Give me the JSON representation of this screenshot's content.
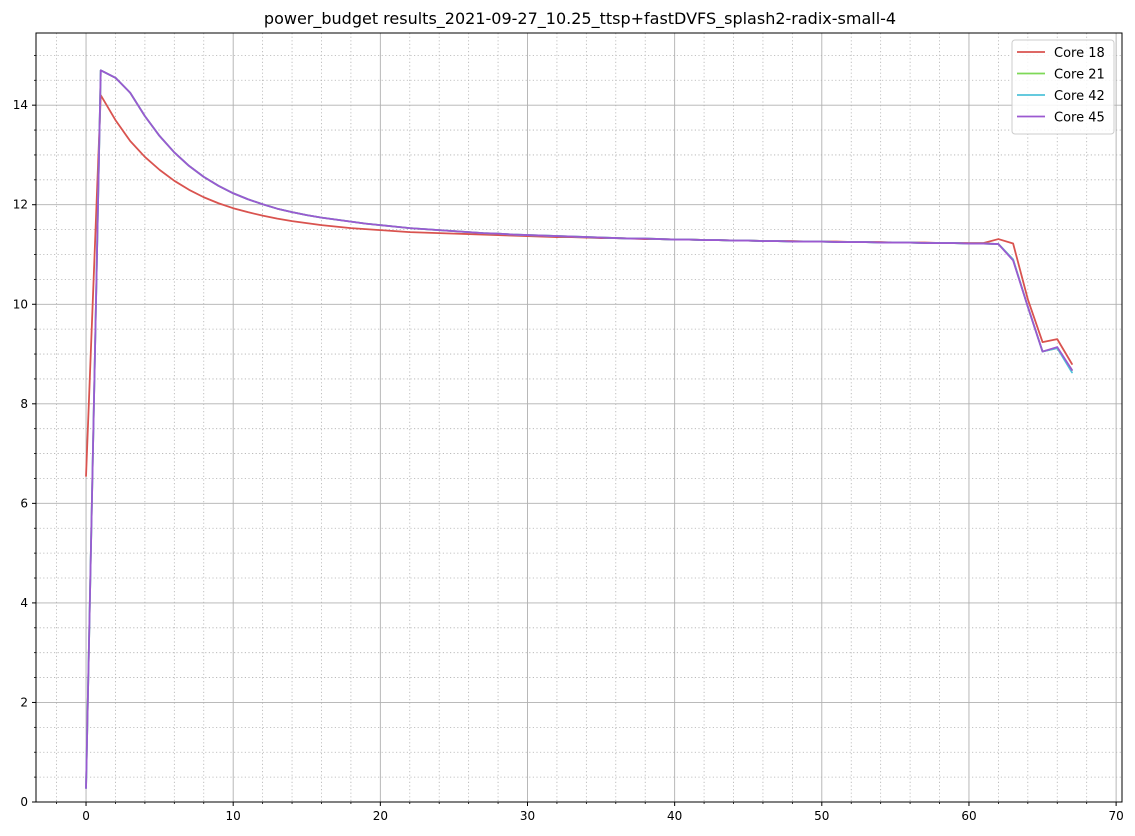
{
  "chart_data": {
    "type": "line",
    "title": "power_budget results_2021-09-27_10.25_ttsp+fastDVFS_splash2-radix-small-4",
    "xlabel": "",
    "ylabel": "",
    "xlim": [
      -3.4,
      70.4
    ],
    "ylim": [
      0,
      15.45
    ],
    "x_ticks": [
      0,
      10,
      20,
      30,
      40,
      50,
      60,
      70
    ],
    "y_ticks": [
      0,
      2,
      4,
      6,
      8,
      10,
      12,
      14
    ],
    "x_minor_step": 2,
    "y_minor_step": 0.5,
    "grid": true,
    "legend_position": "top-right",
    "x": [
      0,
      1,
      2,
      3,
      4,
      5,
      6,
      7,
      8,
      9,
      10,
      11,
      12,
      13,
      14,
      15,
      16,
      17,
      18,
      19,
      20,
      21,
      22,
      23,
      24,
      25,
      26,
      27,
      28,
      29,
      30,
      31,
      32,
      33,
      34,
      35,
      36,
      37,
      38,
      39,
      40,
      41,
      42,
      43,
      44,
      45,
      46,
      47,
      48,
      49,
      50,
      51,
      52,
      53,
      54,
      55,
      56,
      57,
      58,
      59,
      60,
      61,
      62,
      63,
      64,
      65,
      66,
      67
    ],
    "series": [
      {
        "name": "Core 18",
        "color": "#d9534f",
        "values": [
          6.55,
          14.2,
          13.7,
          13.28,
          12.96,
          12.7,
          12.48,
          12.3,
          12.15,
          12.03,
          11.93,
          11.85,
          11.78,
          11.72,
          11.67,
          11.63,
          11.59,
          11.56,
          11.53,
          11.51,
          11.49,
          11.47,
          11.45,
          11.44,
          11.43,
          11.42,
          11.41,
          11.4,
          11.39,
          11.38,
          11.37,
          11.36,
          11.35,
          11.35,
          11.34,
          11.33,
          11.33,
          11.32,
          11.31,
          11.31,
          11.3,
          11.3,
          11.29,
          11.29,
          11.28,
          11.28,
          11.27,
          11.27,
          11.27,
          11.26,
          11.26,
          11.26,
          11.25,
          11.25,
          11.25,
          11.24,
          11.24,
          11.24,
          11.23,
          11.23,
          11.23,
          11.23,
          11.31,
          11.22,
          10.1,
          9.24,
          9.3,
          8.8
        ]
      },
      {
        "name": "Core 21",
        "color": "#7ed957",
        "values": [
          0.28,
          14.7,
          14.55,
          14.25,
          13.78,
          13.38,
          13.05,
          12.78,
          12.56,
          12.38,
          12.23,
          12.11,
          12.01,
          11.92,
          11.85,
          11.79,
          11.74,
          11.7,
          11.66,
          11.62,
          11.59,
          11.56,
          11.53,
          11.51,
          11.49,
          11.47,
          11.45,
          11.43,
          11.42,
          11.4,
          11.39,
          11.38,
          11.37,
          11.36,
          11.35,
          11.34,
          11.33,
          11.32,
          11.32,
          11.31,
          11.3,
          11.3,
          11.29,
          11.29,
          11.28,
          11.28,
          11.27,
          11.27,
          11.26,
          11.26,
          11.26,
          11.25,
          11.25,
          11.25,
          11.24,
          11.24,
          11.24,
          11.23,
          11.23,
          11.23,
          11.22,
          11.22,
          11.21,
          10.9,
          9.95,
          9.05,
          9.12,
          8.68
        ]
      },
      {
        "name": "Core 42",
        "color": "#4fc3d9",
        "values": [
          0.28,
          14.7,
          14.55,
          14.25,
          13.78,
          13.38,
          13.05,
          12.78,
          12.56,
          12.38,
          12.23,
          12.11,
          12.01,
          11.92,
          11.85,
          11.79,
          11.74,
          11.7,
          11.66,
          11.62,
          11.59,
          11.56,
          11.53,
          11.51,
          11.49,
          11.47,
          11.45,
          11.43,
          11.42,
          11.4,
          11.39,
          11.38,
          11.37,
          11.36,
          11.35,
          11.34,
          11.33,
          11.32,
          11.32,
          11.31,
          11.3,
          11.3,
          11.29,
          11.29,
          11.28,
          11.28,
          11.27,
          11.27,
          11.26,
          11.26,
          11.26,
          11.25,
          11.25,
          11.25,
          11.24,
          11.24,
          11.24,
          11.23,
          11.23,
          11.23,
          11.22,
          11.22,
          11.21,
          10.9,
          9.95,
          9.05,
          9.12,
          8.63
        ]
      },
      {
        "name": "Core 45",
        "color": "#9b59d0",
        "values": [
          0.28,
          14.7,
          14.55,
          14.25,
          13.78,
          13.38,
          13.05,
          12.78,
          12.56,
          12.38,
          12.23,
          12.11,
          12.01,
          11.92,
          11.85,
          11.79,
          11.74,
          11.7,
          11.66,
          11.62,
          11.59,
          11.56,
          11.53,
          11.51,
          11.49,
          11.47,
          11.45,
          11.43,
          11.42,
          11.4,
          11.39,
          11.38,
          11.37,
          11.36,
          11.35,
          11.34,
          11.33,
          11.32,
          11.32,
          11.31,
          11.3,
          11.3,
          11.29,
          11.29,
          11.28,
          11.28,
          11.27,
          11.27,
          11.26,
          11.26,
          11.26,
          11.25,
          11.25,
          11.25,
          11.24,
          11.24,
          11.24,
          11.23,
          11.23,
          11.23,
          11.22,
          11.22,
          11.21,
          10.88,
          9.95,
          9.05,
          9.14,
          8.68
        ]
      }
    ]
  }
}
